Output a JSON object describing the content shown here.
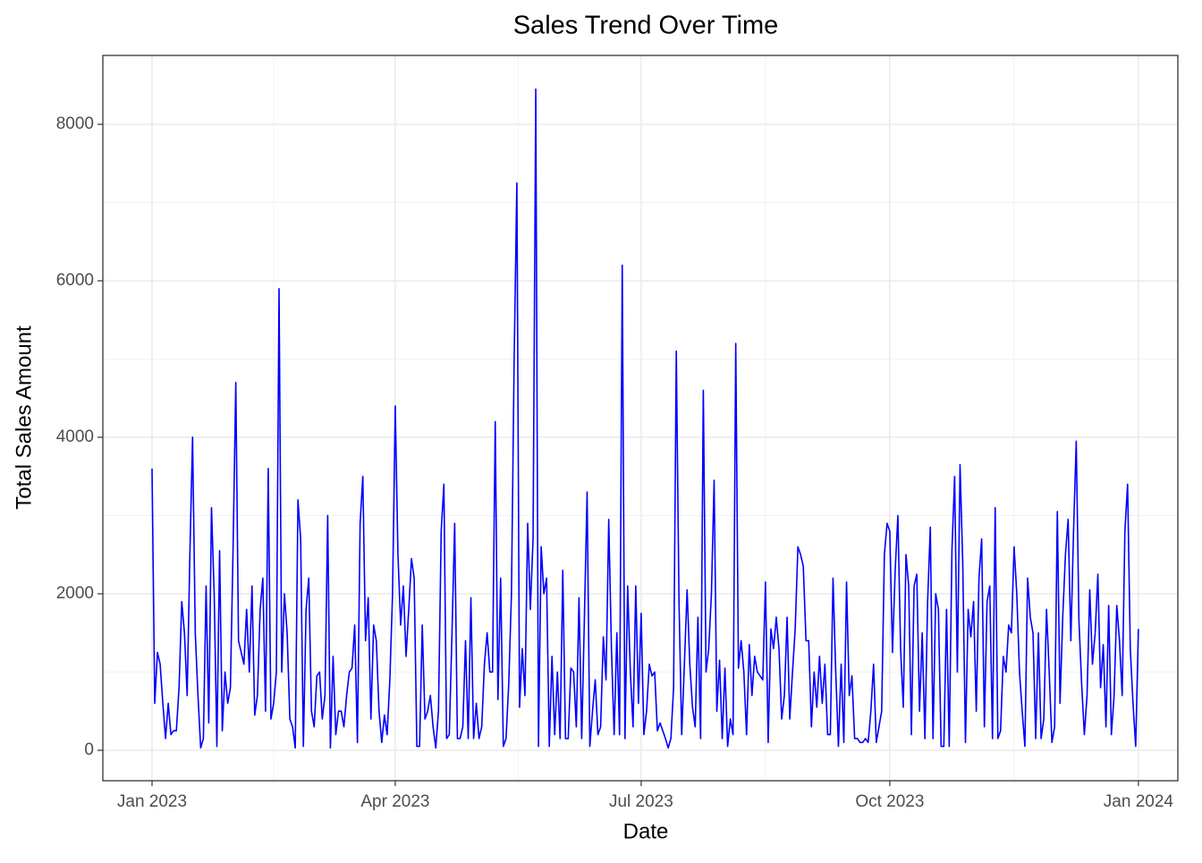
{
  "chart_data": {
    "type": "line",
    "title": "Sales Trend Over Time",
    "x_label": "Date",
    "y_label": "Total Sales Amount",
    "color": "#0000ff",
    "grid": true,
    "xlim": [
      -18.2,
      379.6
    ],
    "ylim": [
      -389,
      8880
    ],
    "xticks": [
      {
        "value": 0,
        "label": "Jan 2023"
      },
      {
        "value": 90,
        "label": "Apr 2023"
      },
      {
        "value": 181,
        "label": "Jul 2023"
      },
      {
        "value": 273,
        "label": "Oct 2023"
      },
      {
        "value": 365,
        "label": "Jan 2024"
      }
    ],
    "xminor": [
      45,
      135.5,
      227,
      319
    ],
    "yticks": [
      0,
      2000,
      4000,
      6000,
      8000
    ],
    "yminor": [
      1000,
      3000,
      5000,
      7000
    ],
    "x": [
      0,
      1,
      2,
      3,
      4,
      5,
      6,
      7,
      8,
      9,
      10,
      11,
      12,
      13,
      14,
      15,
      16,
      17,
      18,
      19,
      20,
      21,
      22,
      23,
      24,
      25,
      26,
      27,
      28,
      29,
      30,
      31,
      32,
      33,
      34,
      35,
      36,
      37,
      38,
      39,
      40,
      41,
      42,
      43,
      44,
      45,
      46,
      47,
      48,
      49,
      50,
      51,
      52,
      53,
      54,
      55,
      56,
      57,
      58,
      59,
      60,
      61,
      62,
      63,
      64,
      65,
      66,
      67,
      68,
      69,
      70,
      71,
      72,
      73,
      74,
      75,
      76,
      77,
      78,
      79,
      80,
      81,
      82,
      83,
      84,
      85,
      86,
      87,
      88,
      89,
      90,
      91,
      92,
      93,
      94,
      95,
      96,
      97,
      98,
      99,
      100,
      101,
      102,
      103,
      104,
      105,
      106,
      107,
      108,
      109,
      110,
      111,
      112,
      113,
      114,
      115,
      116,
      117,
      118,
      119,
      120,
      121,
      122,
      123,
      124,
      125,
      126,
      127,
      128,
      129,
      130,
      131,
      132,
      133,
      134,
      135,
      136,
      137,
      138,
      139,
      140,
      141,
      142,
      143,
      144,
      145,
      146,
      147,
      148,
      149,
      150,
      151,
      152,
      153,
      154,
      155,
      156,
      157,
      158,
      159,
      160,
      161,
      162,
      163,
      164,
      165,
      166,
      167,
      168,
      169,
      170,
      171,
      172,
      173,
      174,
      175,
      176,
      177,
      178,
      179,
      180,
      181,
      182,
      183,
      184,
      185,
      186,
      187,
      188,
      189,
      190,
      191,
      192,
      193,
      194,
      195,
      196,
      197,
      198,
      199,
      200,
      201,
      202,
      203,
      204,
      205,
      206,
      207,
      208,
      209,
      210,
      211,
      212,
      213,
      214,
      215,
      216,
      217,
      218,
      219,
      220,
      221,
      222,
      223,
      224,
      225,
      226,
      227,
      228,
      229,
      230,
      231,
      232,
      233,
      234,
      235,
      236,
      237,
      238,
      239,
      240,
      241,
      242,
      243,
      244,
      245,
      246,
      247,
      248,
      249,
      250,
      251,
      252,
      253,
      254,
      255,
      256,
      257,
      258,
      259,
      260,
      261,
      262,
      263,
      264,
      265,
      266,
      267,
      268,
      269,
      270,
      271,
      272,
      273,
      274,
      275,
      276,
      277,
      278,
      279,
      280,
      281,
      282,
      283,
      284,
      285,
      286,
      287,
      288,
      289,
      290,
      291,
      292,
      293,
      294,
      295,
      296,
      297,
      298,
      299,
      300,
      301,
      302,
      303,
      304,
      305,
      306,
      307,
      308,
      309,
      310,
      311,
      312,
      313,
      314,
      315,
      316,
      317,
      318,
      319,
      320,
      321,
      322,
      323,
      324,
      325,
      326,
      327,
      328,
      329,
      330,
      331,
      332,
      333,
      334,
      335,
      336,
      337,
      338,
      339,
      340,
      341,
      342,
      343,
      344,
      345,
      346,
      347,
      348,
      349,
      350,
      351,
      352,
      353,
      354,
      355,
      356,
      357,
      358,
      359,
      360,
      361,
      362,
      363,
      364,
      365
    ],
    "values": [
      3600,
      600,
      1250,
      1100,
      600,
      150,
      600,
      200,
      250,
      250,
      800,
      1900,
      1500,
      700,
      2500,
      4000,
      1500,
      700,
      30,
      150,
      2100,
      350,
      3100,
      2000,
      50,
      2550,
      250,
      1000,
      600,
      800,
      2600,
      4700,
      1400,
      1250,
      1100,
      1800,
      1000,
      2100,
      450,
      700,
      1800,
      2200,
      500,
      3600,
      400,
      600,
      1000,
      5900,
      1000,
      2000,
      1500,
      400,
      300,
      30,
      3200,
      2700,
      50,
      1800,
      2200,
      500,
      300,
      950,
      1000,
      400,
      700,
      3000,
      30,
      1200,
      200,
      500,
      500,
      300,
      700,
      1000,
      1050,
      1600,
      100,
      2900,
      3500,
      1400,
      1950,
      400,
      1600,
      1400,
      500,
      100,
      450,
      200,
      900,
      2000,
      4400,
      2500,
      1600,
      2100,
      1200,
      1800,
      2450,
      2200,
      50,
      50,
      1600,
      400,
      500,
      700,
      300,
      30,
      500,
      2800,
      3400,
      150,
      200,
      1500,
      2900,
      150,
      150,
      300,
      1400,
      150,
      1950,
      150,
      600,
      150,
      300,
      1100,
      1500,
      1000,
      1000,
      4200,
      650,
      2200,
      50,
      150,
      850,
      2000,
      5000,
      7250,
      550,
      1300,
      700,
      2900,
      1800,
      2700,
      8450,
      50,
      2600,
      2000,
      2200,
      50,
      1200,
      200,
      1000,
      150,
      2300,
      150,
      150,
      1050,
      1000,
      300,
      1950,
      150,
      1700,
      3300,
      50,
      500,
      900,
      200,
      300,
      1450,
      900,
      2950,
      1300,
      200,
      1500,
      200,
      6200,
      150,
      2100,
      1000,
      300,
      2100,
      600,
      1750,
      200,
      500,
      1100,
      950,
      1000,
      250,
      350,
      250,
      150,
      30,
      150,
      800,
      5100,
      1900,
      200,
      1100,
      2050,
      1100,
      550,
      300,
      1700,
      150,
      4600,
      1000,
      1300,
      2000,
      3450,
      500,
      1150,
      150,
      1050,
      50,
      400,
      200,
      5200,
      1050,
      1400,
      1000,
      200,
      1350,
      700,
      1200,
      1000,
      950,
      900,
      2150,
      100,
      1550,
      1300,
      1700,
      1300,
      400,
      700,
      1700,
      400,
      1000,
      1550,
      2600,
      2500,
      2350,
      1400,
      1400,
      300,
      1000,
      550,
      1200,
      600,
      1100,
      200,
      200,
      2200,
      1000,
      50,
      1100,
      100,
      2150,
      700,
      950,
      150,
      150,
      100,
      100,
      150,
      100,
      500,
      1100,
      100,
      300,
      500,
      2500,
      2900,
      2800,
      1250,
      2300,
      3000,
      1300,
      550,
      2500,
      2100,
      200,
      2100,
      2250,
      500,
      1500,
      150,
      1900,
      2850,
      150,
      2000,
      1800,
      50,
      50,
      1800,
      50,
      2550,
      3500,
      1000,
      3650,
      2400,
      100,
      1800,
      1450,
      1900,
      500,
      2200,
      2700,
      300,
      1900,
      2100,
      150,
      3100,
      150,
      250,
      1200,
      1000,
      1600,
      1500,
      2600,
      2000,
      1000,
      500,
      50,
      2200,
      1700,
      1500,
      150,
      1500,
      150,
      400,
      1800,
      1000,
      100,
      300,
      3050,
      600,
      1700,
      2500,
      2950,
      1400,
      2800,
      3950,
      1650,
      850,
      200,
      700,
      2050,
      1100,
      1500,
      2250,
      800,
      1350,
      300,
      1850,
      200,
      700,
      1850,
      1400,
      700,
      2800,
      3400,
      1300,
      600,
      50,
      1550
    ]
  }
}
